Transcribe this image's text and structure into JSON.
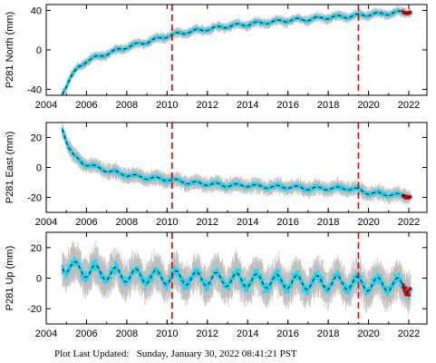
{
  "footer": {
    "label": "Plot Last Updated:",
    "timestamp": "Sunday, January 30, 2022 08:41:21 PST"
  },
  "chart_data": [
    {
      "type": "scatter",
      "ylabel": "P281 North (mm)",
      "xlim": [
        2004,
        2022.9
      ],
      "ylim": [
        -46,
        46
      ],
      "yticks": [
        -40,
        0,
        40
      ],
      "xticks": [
        2004,
        2006,
        2008,
        2010,
        2012,
        2014,
        2016,
        2018,
        2020,
        2022
      ],
      "event_lines": [
        2010.25,
        2019.5
      ],
      "trend": [
        [
          2004.8,
          -44
        ],
        [
          2005.2,
          -28
        ],
        [
          2005.6,
          -18
        ],
        [
          2006.0,
          -11
        ],
        [
          2007.0,
          -4
        ],
        [
          2008.0,
          3
        ],
        [
          2009.0,
          8
        ],
        [
          2010.0,
          14
        ],
        [
          2011.0,
          18
        ],
        [
          2012.0,
          21
        ],
        [
          2013.0,
          24
        ],
        [
          2014.0,
          26
        ],
        [
          2015.0,
          28
        ],
        [
          2016.0,
          30
        ],
        [
          2017.0,
          31
        ],
        [
          2018.0,
          33
        ],
        [
          2019.0,
          34
        ],
        [
          2020.0,
          36
        ],
        [
          2021.0,
          37
        ],
        [
          2022.1,
          39
        ]
      ],
      "seasonal_amplitude": 1.5,
      "scatter_spread": 2.5,
      "series": [
        {
          "role": "daily positions",
          "color": "#22d3ee"
        },
        {
          "role": "error bars",
          "color": "#aaaaaa"
        },
        {
          "role": "model fit",
          "color": "#000000"
        },
        {
          "role": "rapid solutions",
          "color": "#cc0000"
        }
      ],
      "event_line_color": "#dd0000"
    },
    {
      "type": "scatter",
      "ylabel": "P281 East (mm)",
      "xlim": [
        2004,
        2022.9
      ],
      "ylim": [
        -30,
        30
      ],
      "yticks": [
        -20,
        0,
        20
      ],
      "xticks": [
        2004,
        2006,
        2008,
        2010,
        2012,
        2014,
        2016,
        2018,
        2020,
        2022
      ],
      "event_lines": [
        2010.25,
        2019.5
      ],
      "trend": [
        [
          2004.8,
          26
        ],
        [
          2005.1,
          14
        ],
        [
          2005.4,
          7
        ],
        [
          2005.8,
          3
        ],
        [
          2006.5,
          0
        ],
        [
          2007.0,
          -2
        ],
        [
          2008.0,
          -5
        ],
        [
          2009.0,
          -7
        ],
        [
          2010.0,
          -8
        ],
        [
          2011.0,
          -10
        ],
        [
          2012.0,
          -11
        ],
        [
          2013.0,
          -12
        ],
        [
          2014.0,
          -12
        ],
        [
          2015.0,
          -13
        ],
        [
          2016.0,
          -13
        ],
        [
          2017.0,
          -14
        ],
        [
          2018.0,
          -14
        ],
        [
          2019.0,
          -14
        ],
        [
          2019.5,
          -15
        ],
        [
          2020.0,
          -17
        ],
        [
          2021.0,
          -18
        ],
        [
          2022.1,
          -19
        ]
      ],
      "seasonal_amplitude": 1.0,
      "scatter_spread": 2.5,
      "series": [
        {
          "role": "daily positions",
          "color": "#22d3ee"
        },
        {
          "role": "error bars",
          "color": "#aaaaaa"
        },
        {
          "role": "model fit",
          "color": "#000000"
        },
        {
          "role": "rapid solutions",
          "color": "#cc0000"
        }
      ],
      "event_line_color": "#dd0000"
    },
    {
      "type": "scatter",
      "ylabel": "P281 Up (mm)",
      "xlim": [
        2004,
        2022.9
      ],
      "ylim": [
        -30,
        30
      ],
      "yticks": [
        -20,
        0,
        20
      ],
      "xticks": [
        2004,
        2006,
        2008,
        2010,
        2012,
        2014,
        2016,
        2018,
        2020,
        2022
      ],
      "event_lines": [
        2010.25,
        2019.5
      ],
      "trend": [
        [
          2004.8,
          9
        ],
        [
          2005.5,
          6
        ],
        [
          2007.0,
          3
        ],
        [
          2009.0,
          1
        ],
        [
          2011.0,
          0
        ],
        [
          2013.0,
          -1
        ],
        [
          2015.0,
          -2
        ],
        [
          2017.0,
          -3
        ],
        [
          2019.0,
          -3
        ],
        [
          2020.0,
          -4
        ],
        [
          2021.0,
          -4
        ],
        [
          2022.1,
          -5
        ]
      ],
      "seasonal_amplitude": 4.5,
      "scatter_spread": 6,
      "series": [
        {
          "role": "daily positions",
          "color": "#22d3ee"
        },
        {
          "role": "error bars",
          "color": "#aaaaaa"
        },
        {
          "role": "model fit",
          "color": "#000000"
        },
        {
          "role": "rapid solutions",
          "color": "#cc0000"
        }
      ],
      "event_line_color": "#dd0000"
    }
  ]
}
